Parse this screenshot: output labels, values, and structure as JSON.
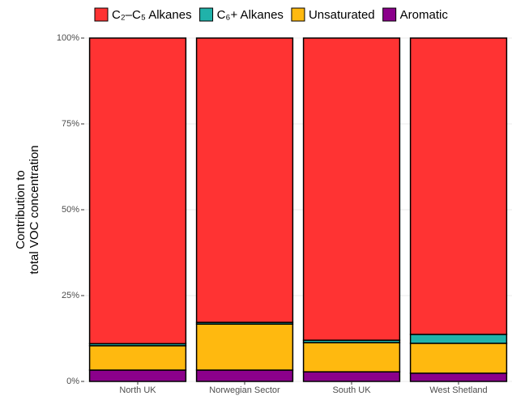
{
  "chart_data": {
    "type": "stacked_bar",
    "y_label": [
      "Contribution to",
      "total VOC concentration"
    ],
    "categories": [
      "North UK",
      "Norwegian Sector",
      "South UK",
      "West Shetland"
    ],
    "series": [
      {
        "name": "C₂–C₅ Alkanes",
        "color": "#ff3333",
        "values": [
          89.0,
          82.8,
          88.0,
          86.3
        ]
      },
      {
        "name": "C₆+ Alkanes",
        "color": "#20b2aa",
        "values": [
          0.6,
          0.5,
          0.7,
          2.6
        ]
      },
      {
        "name": "Unsaturated",
        "color": "#ffb90f",
        "values": [
          7.1,
          13.4,
          8.5,
          8.7
        ]
      },
      {
        "name": "Aromatic",
        "color": "#8b008b",
        "values": [
          3.3,
          3.3,
          2.8,
          2.4
        ]
      }
    ],
    "ylim": [
      0,
      100
    ],
    "yticks": [
      {
        "value": 0,
        "label": "0%"
      },
      {
        "value": 25,
        "label": "25%"
      },
      {
        "value": 50,
        "label": "50%"
      },
      {
        "value": 75,
        "label": "75%"
      },
      {
        "value": 100,
        "label": "100%"
      }
    ],
    "grid": true,
    "legend": "top"
  }
}
